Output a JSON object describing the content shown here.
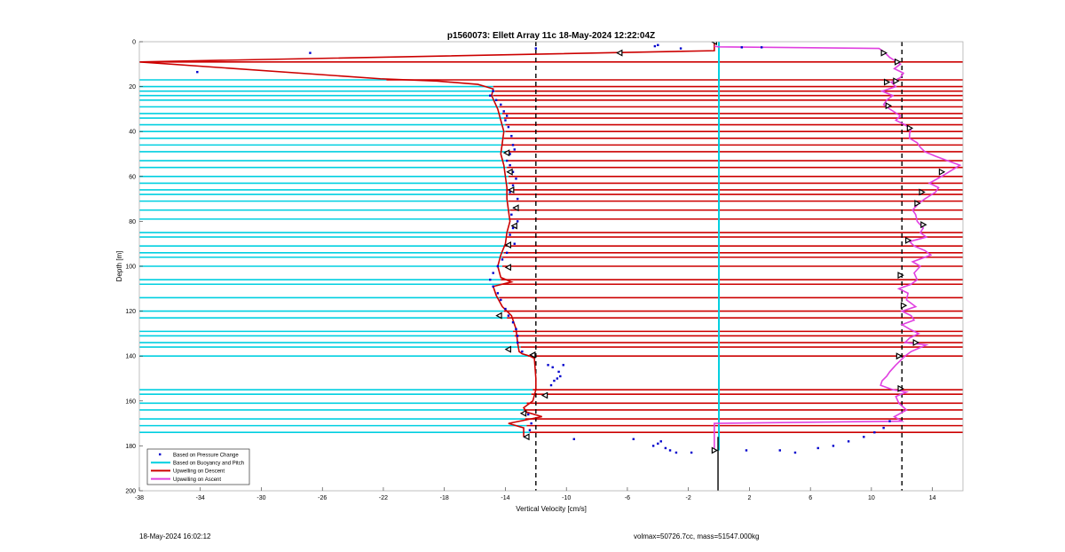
{
  "footer": {
    "left": "18-May-2024 16:02:12",
    "right": "volmax=50726.7cc, mass=51547.000kg"
  },
  "chart_data": {
    "type": "line",
    "title": "p1560073: Ellett Array 11c 18-May-2024 12:22:04Z",
    "xlabel": "Vertical Velocity [cm/s]",
    "ylabel": "Depth [m]",
    "xlim": [
      -38,
      16
    ],
    "ylim": [
      0,
      200
    ],
    "y_reversed": true,
    "xticks": [
      -38,
      -34,
      -30,
      -26,
      -22,
      -18,
      -14,
      -10,
      -6,
      -2,
      2,
      6,
      10,
      14
    ],
    "yticks": [
      0,
      20,
      40,
      60,
      80,
      100,
      120,
      140,
      160,
      180,
      200
    ],
    "grid": false,
    "legend_location": "bottom-left",
    "legend": [
      {
        "label": "Based on Pressure Change",
        "color": "#0000cc",
        "style": "dot"
      },
      {
        "label": "Based on Buoyancy and Pitch",
        "color": "#00cfe0",
        "style": "line"
      },
      {
        "label": "Upwelling on Descent",
        "color": "#cc0000",
        "style": "line"
      },
      {
        "label": "Upwelling on Ascent",
        "color": "#e040e0",
        "style": "line"
      }
    ],
    "reference_lines": {
      "dashed_x": [
        -12,
        12
      ],
      "solid_x": [
        0
      ]
    },
    "colors": {
      "pressure": "#0000cc",
      "buoyancy": "#00cfe0",
      "descent": "#cc0000",
      "ascent": "#e040e0"
    },
    "pressure_points": [
      [
        -26.8,
        5
      ],
      [
        -34.2,
        13.5
      ],
      [
        -12.0,
        3
      ],
      [
        -4.2,
        2
      ],
      [
        -4.0,
        1.5
      ],
      [
        -2.5,
        3
      ],
      [
        1.5,
        2.5
      ],
      [
        2.8,
        2.5
      ],
      [
        -14.8,
        22
      ],
      [
        -15.0,
        24
      ],
      [
        -14.6,
        26
      ],
      [
        -14.3,
        28
      ],
      [
        -14.1,
        31
      ],
      [
        -13.9,
        33
      ],
      [
        -14.0,
        35
      ],
      [
        -13.8,
        38
      ],
      [
        -13.6,
        42
      ],
      [
        -13.5,
        46
      ],
      [
        -13.4,
        48
      ],
      [
        -13.7,
        50
      ],
      [
        -13.9,
        53
      ],
      [
        -13.7,
        55
      ],
      [
        -13.5,
        58
      ],
      [
        -13.3,
        61
      ],
      [
        -13.5,
        64
      ],
      [
        -13.7,
        67
      ],
      [
        -13.2,
        70
      ],
      [
        -13.4,
        74
      ],
      [
        -13.6,
        77
      ],
      [
        -13.2,
        80
      ],
      [
        -13.5,
        83
      ],
      [
        -13.7,
        86
      ],
      [
        -13.4,
        90
      ],
      [
        -13.9,
        94
      ],
      [
        -14.2,
        97
      ],
      [
        -14.5,
        100
      ],
      [
        -14.8,
        103
      ],
      [
        -15.0,
        106
      ],
      [
        -14.8,
        109
      ],
      [
        -14.5,
        112
      ],
      [
        -14.3,
        115
      ],
      [
        -14.0,
        119
      ],
      [
        -13.8,
        122
      ],
      [
        -13.5,
        125
      ],
      [
        -13.3,
        128
      ],
      [
        -13.2,
        131
      ],
      [
        -13.2,
        134
      ],
      [
        -12.9,
        138
      ],
      [
        -11.2,
        144
      ],
      [
        -10.9,
        145
      ],
      [
        -10.5,
        147
      ],
      [
        -10.2,
        144
      ],
      [
        -10.4,
        149
      ],
      [
        -10.8,
        151
      ],
      [
        -11.0,
        153
      ],
      [
        -10.6,
        150
      ],
      [
        -12.5,
        166
      ],
      [
        -12.3,
        170
      ],
      [
        -12.4,
        173
      ],
      [
        -12.7,
        176
      ],
      [
        -9.5,
        177
      ],
      [
        -5.6,
        177
      ],
      [
        -4.3,
        180
      ],
      [
        -4.0,
        179
      ],
      [
        -3.8,
        178
      ],
      [
        -3.5,
        181
      ],
      [
        -3.2,
        182
      ],
      [
        -2.8,
        183
      ],
      [
        -1.8,
        183
      ],
      [
        -0.3,
        182
      ],
      [
        1.8,
        182
      ],
      [
        4.0,
        182
      ],
      [
        5.0,
        183
      ],
      [
        6.5,
        181
      ],
      [
        7.5,
        180
      ],
      [
        8.5,
        178
      ],
      [
        9.5,
        176
      ],
      [
        10.2,
        174
      ],
      [
        10.8,
        172
      ],
      [
        11.2,
        169
      ]
    ],
    "buoyancy_rows": [
      {
        "depth": 9,
        "x": -38
      },
      {
        "depth": 17,
        "x": -21.8
      },
      {
        "depth": 20,
        "x": -14.8
      },
      {
        "depth": 22,
        "x": -14.7
      },
      {
        "depth": 24,
        "x": -14.8
      },
      {
        "depth": 26,
        "x": -14.6
      },
      {
        "depth": 29,
        "x": -14.4
      },
      {
        "depth": 32,
        "x": -14.2
      },
      {
        "depth": 34,
        "x": -14.1
      },
      {
        "depth": 37,
        "x": -14.0
      },
      {
        "depth": 40,
        "x": -14.0
      },
      {
        "depth": 43,
        "x": -14.1
      },
      {
        "depth": 46,
        "x": -14.2
      },
      {
        "depth": 49,
        "x": -14.0
      },
      {
        "depth": 53,
        "x": -13.9
      },
      {
        "depth": 56,
        "x": -13.9
      },
      {
        "depth": 60,
        "x": -13.8
      },
      {
        "depth": 63,
        "x": -13.8
      },
      {
        "depth": 66,
        "x": -13.9
      },
      {
        "depth": 68,
        "x": -13.8
      },
      {
        "depth": 71,
        "x": -13.8
      },
      {
        "depth": 75,
        "x": -13.7
      },
      {
        "depth": 79,
        "x": -13.7
      },
      {
        "depth": 85,
        "x": -13.8
      },
      {
        "depth": 87,
        "x": -13.9
      },
      {
        "depth": 91,
        "x": -14.0
      },
      {
        "depth": 94,
        "x": -14.1
      },
      {
        "depth": 96,
        "x": -14.2
      },
      {
        "depth": 100,
        "x": -14.2
      },
      {
        "depth": 106,
        "x": -14.3
      },
      {
        "depth": 108,
        "x": -14.3
      },
      {
        "depth": 114,
        "x": -14.4
      },
      {
        "depth": 120,
        "x": -14.1
      },
      {
        "depth": 123,
        "x": -13.9
      },
      {
        "depth": 129,
        "x": -13.5
      },
      {
        "depth": 131,
        "x": -13.4
      },
      {
        "depth": 134,
        "x": -13.2
      },
      {
        "depth": 136,
        "x": -13.0
      },
      {
        "depth": 140,
        "x": -12.5
      },
      {
        "depth": 155,
        "x": -12.2
      },
      {
        "depth": 157,
        "x": -12.3
      },
      {
        "depth": 161,
        "x": -12.6
      },
      {
        "depth": 164,
        "x": -12.8
      },
      {
        "depth": 168,
        "x": -12.7
      },
      {
        "depth": 171,
        "x": -12.6
      },
      {
        "depth": 174,
        "x": -12.4
      }
    ],
    "descent_profile": [
      [
        -0.3,
        0
      ],
      [
        -0.3,
        4
      ],
      [
        -38,
        9
      ],
      [
        -22.2,
        16.5
      ],
      [
        -18.5,
        17.5
      ],
      [
        -15.8,
        19
      ],
      [
        -14.8,
        21
      ],
      [
        -14.9,
        24
      ],
      [
        -14.7,
        27
      ],
      [
        -14.5,
        30
      ],
      [
        -14.3,
        35
      ],
      [
        -14.1,
        40
      ],
      [
        -14.2,
        45
      ],
      [
        -14.3,
        50
      ],
      [
        -14.1,
        55
      ],
      [
        -14.0,
        60
      ],
      [
        -13.9,
        65
      ],
      [
        -13.9,
        70
      ],
      [
        -13.8,
        75
      ],
      [
        -13.7,
        80
      ],
      [
        -13.9,
        85
      ],
      [
        -14.0,
        90
      ],
      [
        -14.3,
        95
      ],
      [
        -14.5,
        100
      ],
      [
        -14.3,
        105
      ],
      [
        -13.6,
        107
      ],
      [
        -14.8,
        109
      ],
      [
        -14.6,
        113
      ],
      [
        -14.2,
        118
      ],
      [
        -13.6,
        122
      ],
      [
        -13.3,
        128
      ],
      [
        -13.2,
        134
      ],
      [
        -13.1,
        138
      ],
      [
        -12.9,
        139
      ],
      [
        -12.4,
        140
      ],
      [
        -12.1,
        141
      ],
      [
        -12.0,
        150
      ],
      [
        -12.0,
        155
      ],
      [
        -12.2,
        160
      ],
      [
        -12.8,
        163
      ],
      [
        -12.6,
        165
      ],
      [
        -11.6,
        167
      ],
      [
        -13.8,
        170
      ],
      [
        -12.8,
        172
      ],
      [
        -12.8,
        175
      ],
      [
        -12.8,
        176
      ]
    ],
    "ascent_profile": [
      [
        -0.3,
        182
      ],
      [
        -0.3,
        170
      ],
      [
        12.0,
        169
      ],
      [
        11.5,
        167
      ],
      [
        12.3,
        164
      ],
      [
        11.8,
        161
      ],
      [
        11.6,
        158
      ],
      [
        12.3,
        156
      ],
      [
        11.4,
        155
      ],
      [
        10.6,
        153
      ],
      [
        10.7,
        151
      ],
      [
        11.0,
        149
      ],
      [
        11.2,
        147
      ],
      [
        11.6,
        144
      ],
      [
        11.9,
        142
      ],
      [
        12.2,
        140
      ],
      [
        12.6,
        138
      ],
      [
        13.6,
        135
      ],
      [
        12.2,
        134
      ],
      [
        12.5,
        132
      ],
      [
        13.1,
        130
      ],
      [
        12.5,
        128
      ],
      [
        12.0,
        126
      ],
      [
        12.8,
        124
      ],
      [
        12.6,
        122
      ],
      [
        12.0,
        120
      ],
      [
        12.9,
        118
      ],
      [
        12.3,
        115
      ],
      [
        12.4,
        112
      ],
      [
        11.8,
        110
      ],
      [
        12.6,
        108
      ],
      [
        13.0,
        106
      ],
      [
        12.8,
        103
      ],
      [
        13.2,
        100
      ],
      [
        12.7,
        98
      ],
      [
        13.9,
        95
      ],
      [
        13.5,
        93
      ],
      [
        12.8,
        91
      ],
      [
        12.5,
        89
      ],
      [
        13.6,
        87
      ],
      [
        13.2,
        85
      ],
      [
        13.4,
        83
      ],
      [
        13.0,
        80
      ],
      [
        12.9,
        77
      ],
      [
        12.7,
        75
      ],
      [
        13.1,
        72
      ],
      [
        13.5,
        70
      ],
      [
        14.2,
        67
      ],
      [
        14.4,
        65
      ],
      [
        13.8,
        63
      ],
      [
        14.6,
        60
      ],
      [
        15.8,
        55
      ],
      [
        15.0,
        53
      ],
      [
        14.2,
        51
      ],
      [
        13.5,
        49
      ],
      [
        13.2,
        47
      ],
      [
        13.0,
        45
      ],
      [
        12.5,
        43
      ],
      [
        12.5,
        41
      ],
      [
        12.6,
        39
      ],
      [
        12.2,
        37
      ],
      [
        11.6,
        35
      ],
      [
        11.9,
        33
      ],
      [
        11.2,
        30
      ],
      [
        10.8,
        28
      ],
      [
        11.0,
        26
      ],
      [
        11.4,
        24
      ],
      [
        10.7,
        22
      ],
      [
        11.6,
        20
      ],
      [
        11.3,
        18
      ],
      [
        11.9,
        16
      ],
      [
        12.1,
        14
      ],
      [
        11.5,
        12
      ],
      [
        11.9,
        10
      ],
      [
        11.2,
        7
      ],
      [
        10.9,
        5
      ],
      [
        10.5,
        3
      ],
      [
        0,
        2.3
      ],
      [
        -0.3,
        2
      ]
    ],
    "descent_markers": [
      [
        -6.5,
        5
      ],
      [
        -12.2,
        139.5
      ],
      [
        -12.8,
        165.5
      ],
      [
        -12.6,
        176
      ],
      [
        -13.8,
        137
      ],
      [
        -14.4,
        122
      ],
      [
        -13.8,
        100.5
      ],
      [
        -13.8,
        90.5
      ],
      [
        -13.4,
        82
      ],
      [
        -13.3,
        74
      ],
      [
        -13.6,
        66
      ],
      [
        -13.7,
        58
      ],
      [
        -13.9,
        49.5
      ],
      [
        -11.4,
        157.5
      ],
      [
        -0.3,
        0
      ]
    ],
    "ascent_markers": [
      [
        10.8,
        5
      ],
      [
        11.7,
        9
      ],
      [
        11.6,
        17.5
      ],
      [
        11.0,
        18
      ],
      [
        11.1,
        28.5
      ],
      [
        12.5,
        38.5
      ],
      [
        14.6,
        58
      ],
      [
        13.3,
        67
      ],
      [
        13.0,
        72
      ],
      [
        13.4,
        81.5
      ],
      [
        12.4,
        88.5
      ],
      [
        11.9,
        104
      ],
      [
        12.1,
        117.5
      ],
      [
        12.9,
        134
      ],
      [
        11.8,
        140
      ],
      [
        11.9,
        154.5
      ],
      [
        -0.3,
        182
      ]
    ]
  }
}
